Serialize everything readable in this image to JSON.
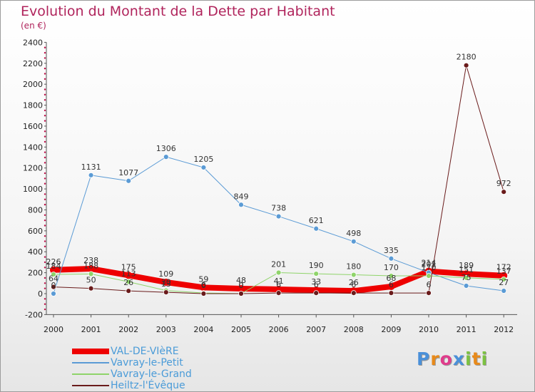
{
  "header": {
    "title": "Evolution du Montant de la Dette par Habitant",
    "subtitle": "(en €)"
  },
  "logo": {
    "text": "Proxiti",
    "colors": [
      "#4a90d9",
      "#e88a1a",
      "#e03c8c",
      "#4a90d9",
      "#7cc242",
      "#e88a1a",
      "#7cc242"
    ]
  },
  "chart_data": {
    "type": "line",
    "title": "Evolution du Montant de la Dette par Habitant",
    "subtitle": "(en €)",
    "xlabel": "",
    "ylabel": "",
    "categories": [
      "2000",
      "2001",
      "2002",
      "2003",
      "2004",
      "2005",
      "2006",
      "2007",
      "2008",
      "2009",
      "2010",
      "2011",
      "2012"
    ],
    "ylim": [
      -200,
      2400
    ],
    "yticks": [
      -200,
      0,
      200,
      400,
      600,
      800,
      1000,
      1200,
      1400,
      1600,
      1800,
      2000,
      2200,
      2400
    ],
    "grid": false,
    "legend_position": "bottom-left",
    "series": [
      {
        "name": "VAL-DE-VIèRE",
        "color": "#ee0000",
        "width": 8,
        "values": [
          226,
          238,
          175,
          109,
          59,
          48,
          41,
          33,
          26,
          68,
          214,
          189,
          172
        ],
        "labels": [
          "226",
          "238",
          "175",
          "109",
          "59",
          "48",
          "41",
          "33",
          "26",
          "68",
          "214",
          "189",
          "172"
        ]
      },
      {
        "name": "Vavray-le-Petit",
        "color": "#5b9bd5",
        "width": 1,
        "values": [
          0,
          1131,
          1077,
          1306,
          1205,
          849,
          738,
          621,
          498,
          335,
          201,
          75,
          27
        ],
        "labels": [
          "0",
          "1131",
          "1077",
          "1306",
          "1205",
          "849",
          "738",
          "621",
          "498",
          "335",
          "201",
          "75",
          "27"
        ]
      },
      {
        "name": "Vavray-le-Grand",
        "color": "#8fd46a",
        "width": 1,
        "values": [
          184,
          188,
          113,
          30,
          6,
          0,
          201,
          190,
          180,
          170,
          170,
          151,
          137
        ],
        "labels": [
          "184",
          "188",
          "113",
          "30",
          "6",
          "0",
          "201",
          "190",
          "180",
          "170",
          "170",
          "151",
          "137"
        ]
      },
      {
        "name": "Heiltz-l'Évêque",
        "color": "#6a1b1b",
        "width": 1,
        "values": [
          64,
          50,
          26,
          13,
          0,
          0,
          6,
          6,
          6,
          6,
          6,
          2180,
          972
        ],
        "labels": [
          "64",
          "50",
          "26",
          "13",
          "0",
          "0",
          "6",
          "6",
          "6",
          "6",
          "6",
          "2180",
          "972"
        ]
      }
    ]
  }
}
